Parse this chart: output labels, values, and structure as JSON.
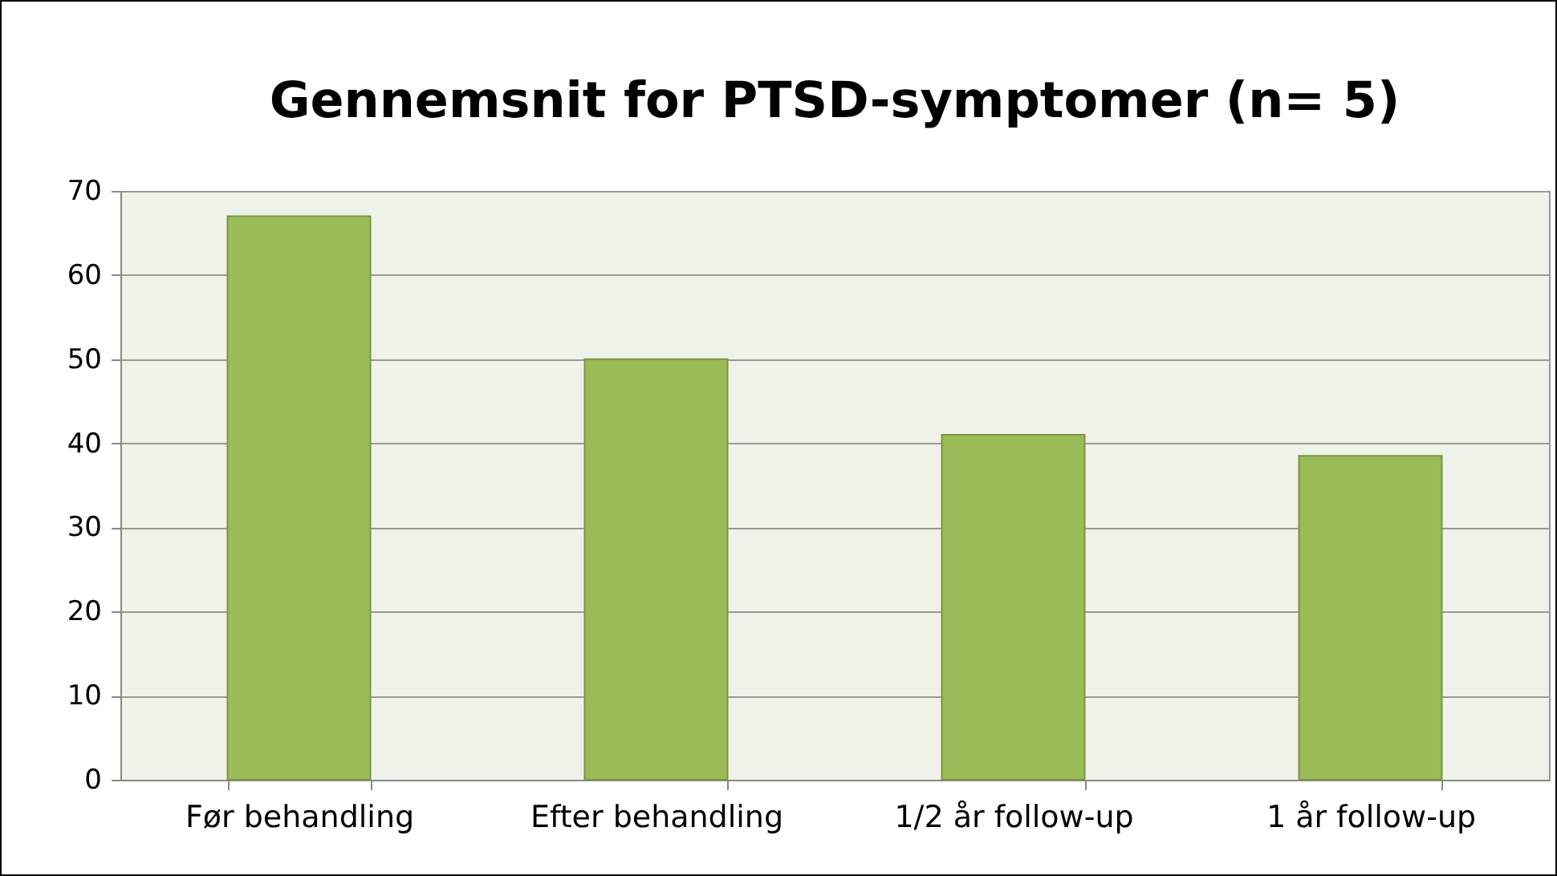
{
  "chart_data": {
    "type": "bar",
    "title": "Gennemsnit for PTSD-symptomer (n= 5)",
    "categories": [
      "Før behandling",
      "Efter behandling",
      "1/2 år follow-up",
      "1 år follow-up"
    ],
    "values": [
      67,
      50,
      41,
      38.5
    ],
    "color": "#9bbb59",
    "ylim": [
      0,
      70
    ],
    "yticks": [
      0,
      10,
      20,
      30,
      40,
      50,
      60,
      70
    ],
    "grid": "y"
  }
}
